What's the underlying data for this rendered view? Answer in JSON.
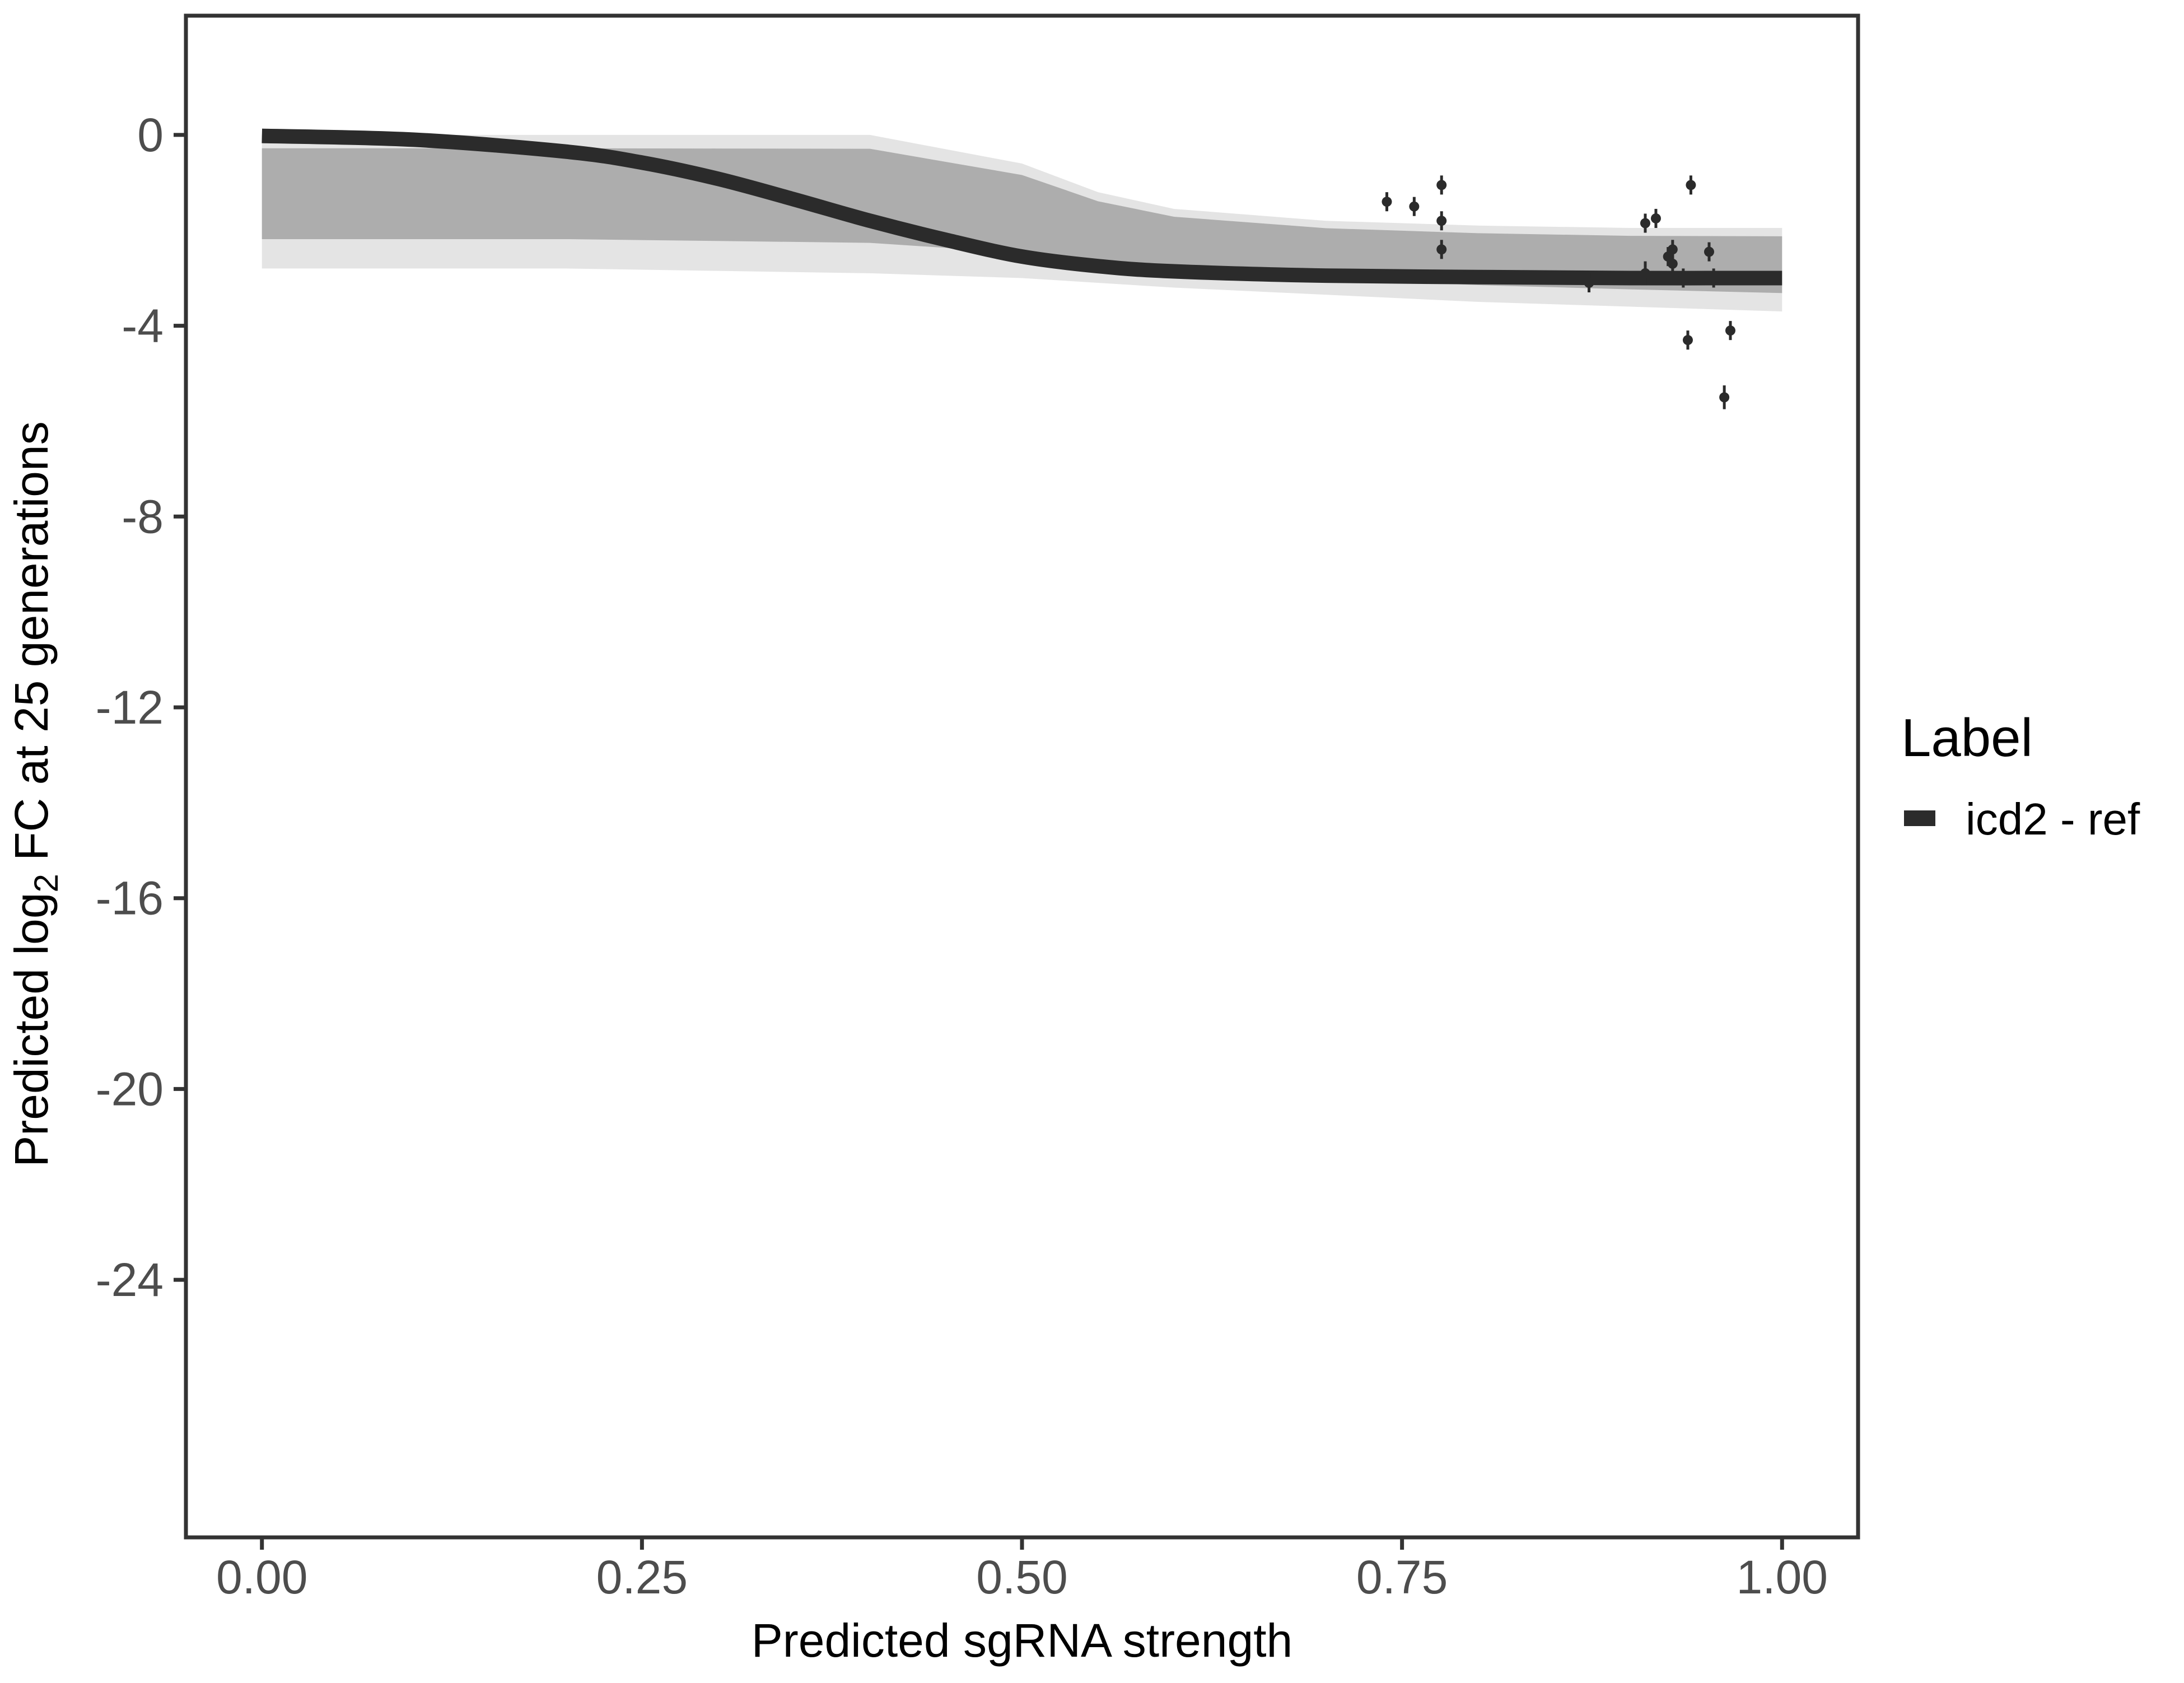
{
  "chart_data": {
    "type": "line",
    "title": "",
    "xlabel": "Predicted sgRNA strength",
    "ylabel_prefix": "Predicted  log",
    "ylabel_subscript": "2",
    "ylabel_suffix": " FC at 25 generations",
    "xlim": [
      -0.05,
      1.05
    ],
    "ylim": [
      -29.4,
      2.5
    ],
    "x_ticks": [
      0.0,
      0.25,
      0.5,
      0.75,
      1.0
    ],
    "x_tick_labels": [
      "0.00",
      "0.25",
      "0.50",
      "0.75",
      "1.00"
    ],
    "y_ticks": [
      0,
      -4,
      -8,
      -12,
      -16,
      -20,
      -24
    ],
    "y_tick_labels": [
      "0",
      "-4",
      "-8",
      "-12",
      "-16",
      "-20",
      "-24"
    ],
    "grid": false,
    "legend": {
      "title": "Label",
      "position": "right",
      "entries": [
        "icd2 - ref"
      ]
    },
    "colors": {
      "fit": "#2b2b2b",
      "posterior": "#b3b3b3",
      "points": "#2b2b2b",
      "axis": "#333333",
      "tick_label": "#4d4d4d"
    },
    "fit": {
      "name": "icd2 - ref",
      "x": [
        0.0,
        0.1,
        0.2,
        0.25,
        0.3,
        0.35,
        0.4,
        0.45,
        0.5,
        0.55,
        0.6,
        0.7,
        0.8,
        0.9,
        1.0
      ],
      "y": [
        -0.02,
        -0.1,
        -0.35,
        -0.58,
        -0.92,
        -1.35,
        -1.8,
        -2.2,
        -2.55,
        -2.75,
        -2.86,
        -2.95,
        -2.98,
        -3.0,
        -3.0
      ]
    },
    "posterior_band": {
      "x": [
        0.0,
        0.1,
        0.2,
        0.3,
        0.4,
        0.5,
        0.55,
        0.6,
        0.7,
        0.8,
        0.9,
        1.0
      ],
      "upper": [
        0.0,
        0.0,
        0.0,
        0.0,
        0.0,
        -0.6,
        -1.2,
        -1.55,
        -1.8,
        -1.9,
        -1.95,
        -1.95
      ],
      "lower": [
        -2.8,
        -2.8,
        -2.8,
        -2.85,
        -2.9,
        -3.0,
        -3.1,
        -3.2,
        -3.35,
        -3.5,
        -3.6,
        -3.7
      ]
    },
    "points": [
      {
        "x": 0.74,
        "y": -1.4,
        "err": 0.2
      },
      {
        "x": 0.758,
        "y": -1.5,
        "err": 0.2
      },
      {
        "x": 0.776,
        "y": -1.05,
        "err": 0.2
      },
      {
        "x": 0.776,
        "y": -1.8,
        "err": 0.2
      },
      {
        "x": 0.776,
        "y": -2.4,
        "err": 0.2
      },
      {
        "x": 0.873,
        "y": -3.1,
        "err": 0.2
      },
      {
        "x": 0.91,
        "y": -1.85,
        "err": 0.2
      },
      {
        "x": 0.91,
        "y": -2.9,
        "err": 0.25
      },
      {
        "x": 0.917,
        "y": -1.75,
        "err": 0.2
      },
      {
        "x": 0.925,
        "y": -2.55,
        "err": 0.2
      },
      {
        "x": 0.928,
        "y": -2.4,
        "err": 0.2
      },
      {
        "x": 0.928,
        "y": -2.7,
        "err": 0.2
      },
      {
        "x": 0.935,
        "y": -3.0,
        "err": 0.2
      },
      {
        "x": 0.938,
        "y": -4.3,
        "err": 0.2
      },
      {
        "x": 0.94,
        "y": -1.05,
        "err": 0.2
      },
      {
        "x": 0.952,
        "y": -2.45,
        "err": 0.2
      },
      {
        "x": 0.955,
        "y": -3.0,
        "err": 0.2
      },
      {
        "x": 0.962,
        "y": -5.5,
        "err": 0.25
      },
      {
        "x": 0.966,
        "y": -4.1,
        "err": 0.2
      }
    ]
  }
}
